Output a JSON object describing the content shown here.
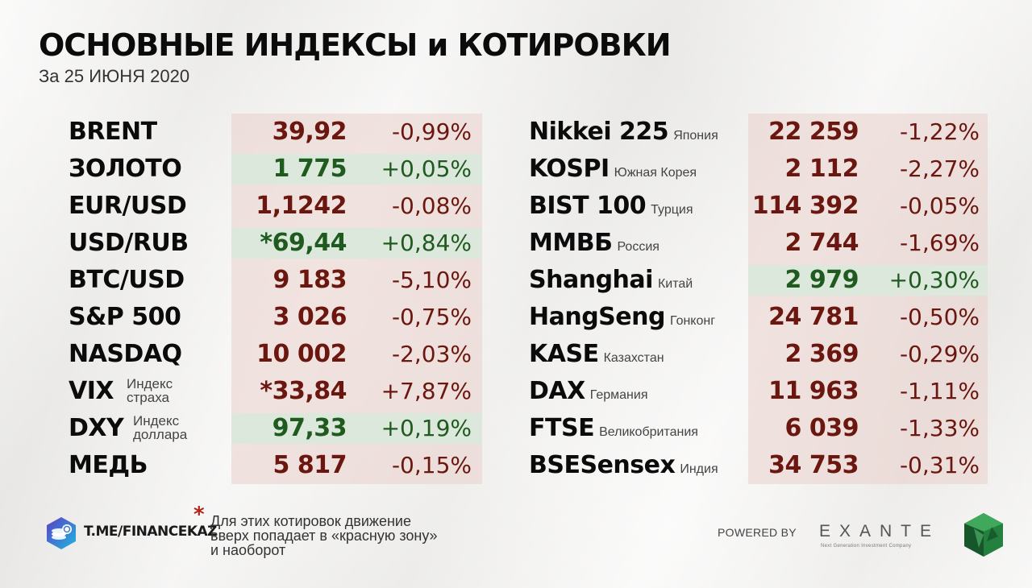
{
  "header": {
    "title": "ОСНОВНЫЕ ИНДЕКСЫ и КОТИРОВКИ",
    "date": "За 25 ИЮНЯ 2020"
  },
  "left_table": [
    {
      "name": "BRENT",
      "value": "39,92",
      "change": "-0,99%",
      "direction": "down"
    },
    {
      "name": "ЗОЛОТО",
      "value": "1 775",
      "change": "+0,05%",
      "direction": "up"
    },
    {
      "name": "EUR/USD",
      "value": "1,1242",
      "change": "-0,08%",
      "direction": "down"
    },
    {
      "name": "USD/RUB",
      "value": "*69,44",
      "change": "+0,84%",
      "direction": "up"
    },
    {
      "name": "BTC/USD",
      "value": "9 183",
      "change": "-5,10%",
      "direction": "down"
    },
    {
      "name": "S&P 500",
      "value": "3 026",
      "change": "-0,75%",
      "direction": "down"
    },
    {
      "name": "NASDAQ",
      "value": "10 002",
      "change": "-2,03%",
      "direction": "down"
    },
    {
      "name": "VIX",
      "note": "Индекс\nстраха",
      "value": "*33,84",
      "change": "+7,87%",
      "direction": "down"
    },
    {
      "name": "DXY",
      "note": "Индекс\nдоллара",
      "value": "97,33",
      "change": "+0,19%",
      "direction": "up"
    },
    {
      "name": "МЕДЬ",
      "value": "5 817",
      "change": "-0,15%",
      "direction": "down"
    }
  ],
  "right_table": [
    {
      "name": "Nikkei 225",
      "note": "Япония",
      "value": "22 259",
      "change": "-1,22%",
      "direction": "down"
    },
    {
      "name": "KOSPI",
      "note": "Южная Корея",
      "value": "2 112",
      "change": "-2,27%",
      "direction": "down"
    },
    {
      "name": "BIST 100",
      "note": "Турция",
      "value": "114 392",
      "change": "-0,05%",
      "direction": "down"
    },
    {
      "name": "ММВБ",
      "note": "Россия",
      "value": "2 744",
      "change": "-1,69%",
      "direction": "down"
    },
    {
      "name": "Shanghai",
      "note": "Китай",
      "value": "2 979",
      "change": "+0,30%",
      "direction": "up"
    },
    {
      "name": "HangSeng",
      "note": "Гонконг",
      "value": "24 781",
      "change": "-0,50%",
      "direction": "down"
    },
    {
      "name": "KASE",
      "note": "Казахстан",
      "value": "2 369",
      "change": "-0,29%",
      "direction": "down"
    },
    {
      "name": "DAX",
      "note": "Германия",
      "value": "11 963",
      "change": "-1,11%",
      "direction": "down"
    },
    {
      "name": "FTSE",
      "note": "Великобритания",
      "value": "6 039",
      "change": "-1,33%",
      "direction": "down"
    },
    {
      "name": "BSESensex",
      "note": "Индия",
      "value": "34 753",
      "change": "-0,31%",
      "direction": "down"
    }
  ],
  "footnote": {
    "star": "*",
    "text": "Для этих котировок движение\nвверх попадает в «красную зону»\nи наоборот"
  },
  "brand": {
    "text": "T.ME/FINANCEKAZ",
    "icon": "coin-stack-hexagon-icon"
  },
  "sponsor": {
    "powered_by": "POWERED BY",
    "name": "EXANTE",
    "tagline": "Next Generation Investment Company",
    "icon": "emerald-crystal-icon"
  },
  "colors": {
    "down": "#6b1710",
    "up": "#1f5a1f",
    "panel": "#ead0cb",
    "green_row": "#dde8dd",
    "star": "#b0241b"
  }
}
